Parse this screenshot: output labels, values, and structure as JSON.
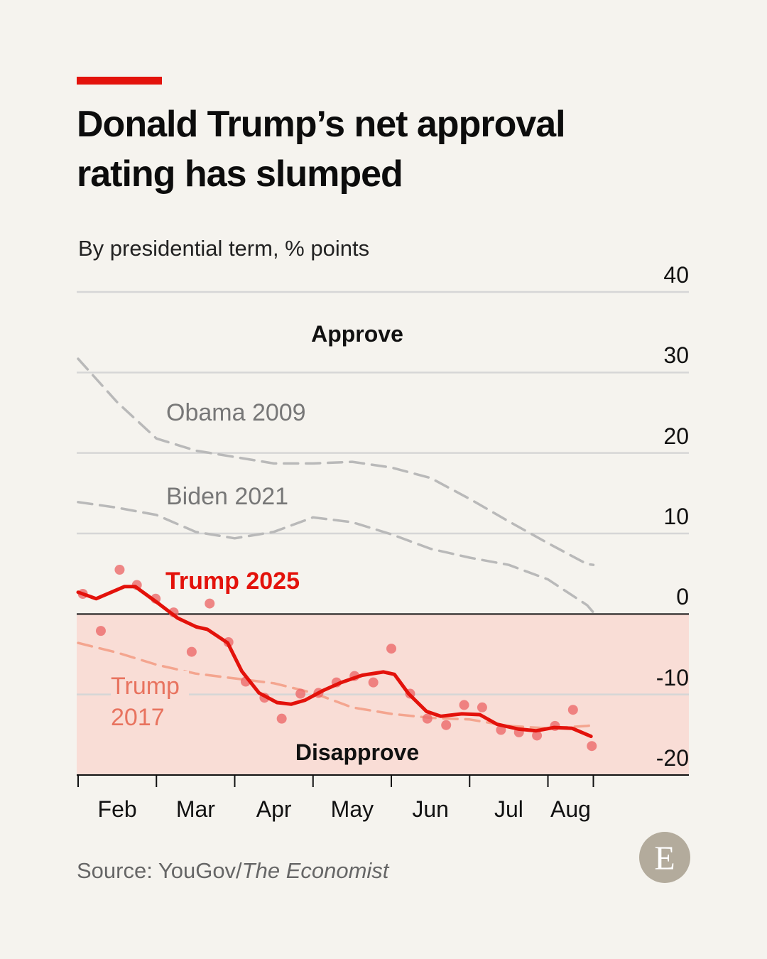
{
  "chart_data": {
    "type": "line",
    "title": "Donald Trump’s net approval rating has slumped",
    "subtitle": "By presidential term, % points",
    "annotations": [
      "Approve",
      "Disapprove"
    ],
    "source": "Source: YouGov/",
    "source_italic": "The Economist",
    "logo": "E",
    "categories": [
      "Feb",
      "Mar",
      "Apr",
      "May",
      "Jun",
      "Jul",
      "Aug"
    ],
    "xlim": [
      0,
      7.8
    ],
    "xticks": [
      0,
      1,
      2,
      3,
      4,
      5,
      6,
      6.58
    ],
    "ylim": [
      -20,
      40
    ],
    "yticks": [
      -20,
      -10,
      0,
      10,
      20,
      30,
      40
    ],
    "grid": true,
    "shade_below_zero": true,
    "shade_color": "#f9ddd6",
    "series": [
      {
        "name": "Obama 2009",
        "color": "#b9b9b9",
        "style": "dashed",
        "x": [
          0,
          0.5,
          1,
          1.5,
          2,
          2.5,
          3,
          3.5,
          4,
          4.5,
          5,
          5.5,
          6,
          6.5,
          6.58
        ],
        "values": [
          31.7,
          26.3,
          21.8,
          20.3,
          19.5,
          18.7,
          18.7,
          18.9,
          18.2,
          16.9,
          14.3,
          11.5,
          8.8,
          6.2,
          6.1
        ]
      },
      {
        "name": "Biden 2021",
        "color": "#b9b9b9",
        "style": "dashed",
        "x": [
          0,
          0.5,
          1,
          1.5,
          2,
          2.5,
          3,
          3.5,
          4,
          4.5,
          5,
          5.5,
          6,
          6.5,
          6.58
        ],
        "values": [
          13.9,
          13.2,
          12.3,
          10.2,
          9.4,
          10.2,
          12.0,
          11.4,
          9.9,
          8.1,
          7.0,
          6.1,
          4.3,
          1.1,
          0.2
        ]
      },
      {
        "name": "Trump 2017",
        "color": "#f4a58f",
        "style": "dashed",
        "x": [
          0,
          0.5,
          1,
          1.5,
          2,
          2.5,
          3,
          3.5,
          4,
          4.5,
          5,
          5.5,
          6,
          6.5,
          6.58
        ],
        "values": [
          -3.6,
          -4.8,
          -6.3,
          -7.4,
          -8.0,
          -8.6,
          -9.8,
          -11.6,
          -12.4,
          -12.9,
          -13.1,
          -13.9,
          -14.2,
          -13.9,
          -13.8
        ]
      },
      {
        "name": "Trump 2025",
        "color": "#e3120b",
        "style": "solid",
        "x": [
          0,
          0.23,
          0.59,
          0.73,
          1.04,
          1.27,
          1.51,
          1.65,
          1.91,
          2.09,
          2.31,
          2.54,
          2.72,
          2.9,
          3.13,
          3.36,
          3.63,
          3.9,
          4.04,
          4.22,
          4.45,
          4.63,
          4.9,
          5.13,
          5.35,
          5.63,
          5.85,
          6.08,
          6.31,
          6.55
        ],
        "values": [
          2.7,
          1.9,
          3.4,
          3.4,
          1.2,
          -0.5,
          -1.6,
          -1.9,
          -3.6,
          -7.1,
          -9.8,
          -11.0,
          -11.2,
          -10.7,
          -9.5,
          -8.5,
          -7.6,
          -7.2,
          -7.5,
          -9.9,
          -12.1,
          -12.7,
          -12.4,
          -12.5,
          -13.7,
          -14.3,
          -14.5,
          -14.1,
          -14.2,
          -15.2
        ]
      }
    ],
    "points": {
      "color": "#ec6a6a",
      "x": [
        0.06,
        0.29,
        0.53,
        0.75,
        0.99,
        1.22,
        1.45,
        1.68,
        1.92,
        2.14,
        2.38,
        2.6,
        2.84,
        3.07,
        3.3,
        3.53,
        3.77,
        4.0,
        4.24,
        4.46,
        4.7,
        4.93,
        5.16,
        5.4,
        5.63,
        5.86,
        6.09,
        6.32,
        6.56
      ],
      "values": [
        2.5,
        -2.1,
        5.5,
        3.6,
        1.9,
        0.2,
        -4.7,
        1.3,
        -3.5,
        -8.4,
        -10.4,
        -13.0,
        -9.9,
        -9.8,
        -8.5,
        -7.7,
        -8.5,
        -4.3,
        -9.9,
        -13.0,
        -13.8,
        -11.3,
        -11.6,
        -14.4,
        -14.7,
        -15.1,
        -13.9,
        -11.9,
        -16.4
      ]
    }
  }
}
